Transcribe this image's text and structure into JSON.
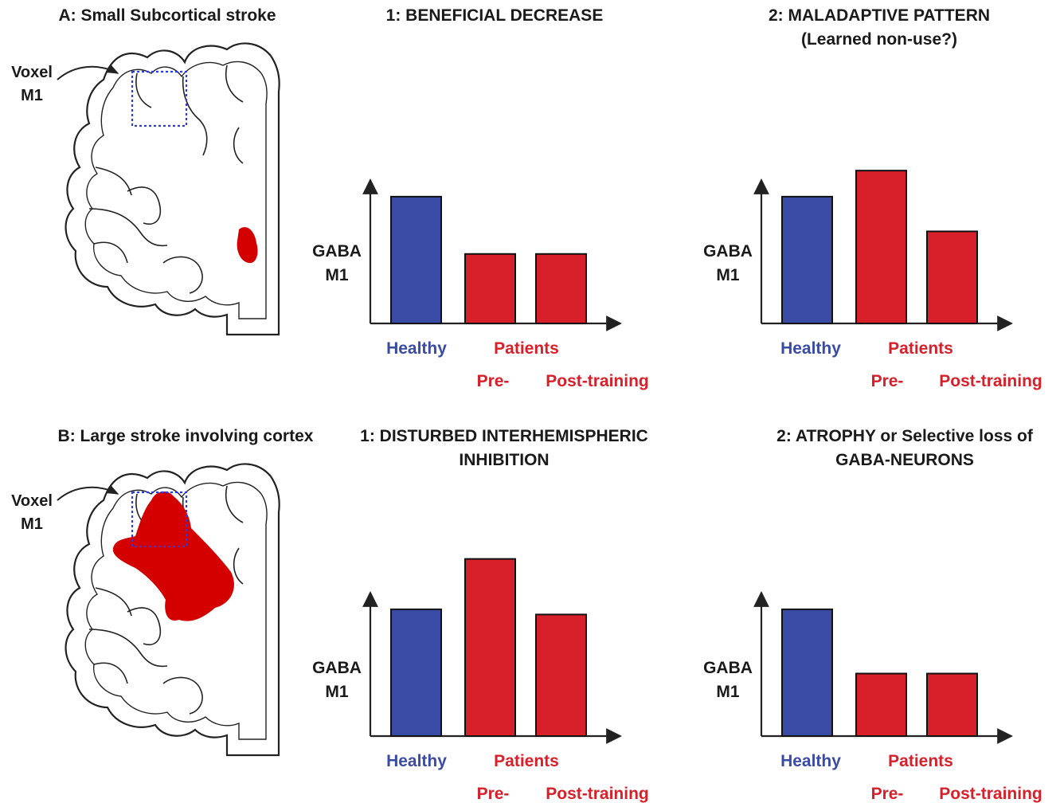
{
  "colors": {
    "healthy": "#3a4ba6",
    "patient": "#d7202a",
    "lesion": "#d40000",
    "voxel": "#2a3de0",
    "text": "#1a1a1a"
  },
  "rowA": {
    "brain_title": "A: Small Subcortical stroke",
    "voxel_label": [
      "Voxel",
      "M1"
    ],
    "lesion_size": "small",
    "charts": [
      {
        "title": [
          "1: BENEFICIAL DECREASE"
        ],
        "ylabel": [
          "GABA",
          "M1"
        ],
        "values": [
          0.73,
          0.4,
          0.4
        ],
        "categories": {
          "healthy": "Healthy",
          "patients": "Patients",
          "pre": "Pre-",
          "post": "Post-training"
        }
      },
      {
        "title": [
          "2: MALADAPTIVE PATTERN",
          "(Learned non-use?)"
        ],
        "ylabel": [
          "GABA",
          "M1"
        ],
        "values": [
          0.73,
          0.88,
          0.53
        ],
        "categories": {
          "healthy": "Healthy",
          "patients": "Patients",
          "pre": "Pre-",
          "post": "Post-training"
        }
      }
    ]
  },
  "rowB": {
    "brain_title": "B: Large stroke involving cortex",
    "voxel_label": [
      "Voxel",
      "M1"
    ],
    "lesion_size": "large",
    "charts": [
      {
        "title": [
          "1: DISTURBED INTERHEMISPHERIC",
          "INHIBITION"
        ],
        "ylabel": [
          "GABA",
          "M1"
        ],
        "values": [
          0.73,
          1.02,
          0.7
        ],
        "categories": {
          "healthy": "Healthy",
          "patients": "Patients",
          "pre": "Pre-",
          "post": "Post-training"
        }
      },
      {
        "title": [
          "2: ATROPHY or Selective loss of",
          "GABA-NEURONS"
        ],
        "ylabel": [
          "GABA",
          "M1"
        ],
        "values": [
          0.73,
          0.36,
          0.36
        ],
        "categories": {
          "healthy": "Healthy",
          "patients": "Patients",
          "pre": "Pre-",
          "post": "Post-training"
        }
      }
    ]
  }
}
